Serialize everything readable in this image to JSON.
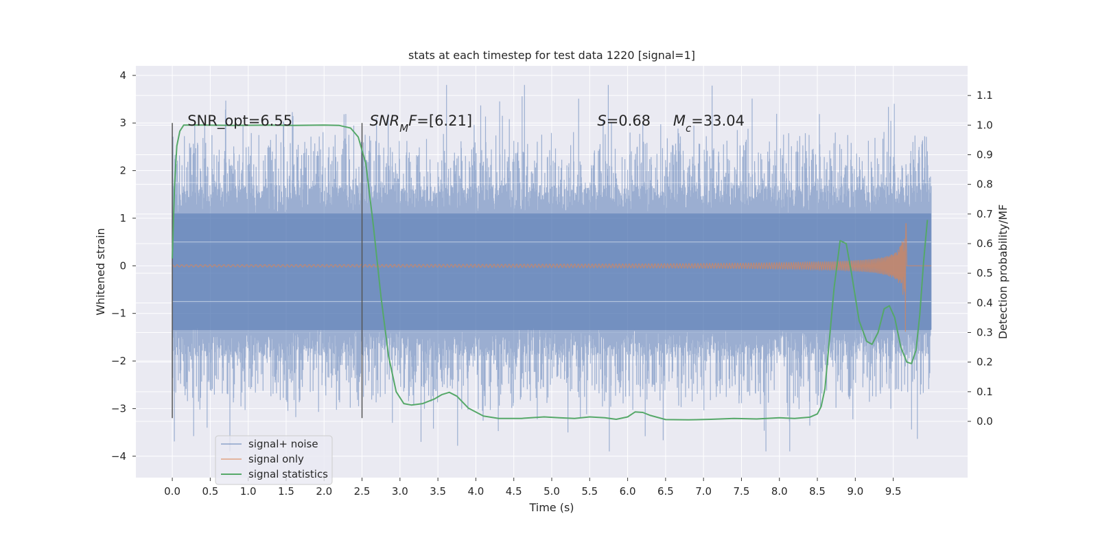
{
  "chart_data": {
    "type": "line",
    "title": "stats at each timestep for test data 1220 [signal=1]",
    "xlabel": "Time (s)",
    "ylabel_left": "Whitened strain",
    "ylabel_right": "Detection probability/MF",
    "xlim": [
      -0.48,
      10.48
    ],
    "ylim_left": [
      -4.45,
      4.2
    ],
    "ylim_right": [
      -0.19,
      1.2
    ],
    "x_ticks": [
      0.0,
      0.5,
      1.0,
      1.5,
      2.0,
      2.5,
      3.0,
      3.5,
      4.0,
      4.5,
      5.0,
      5.5,
      6.0,
      6.5,
      7.0,
      7.5,
      8.0,
      8.5,
      9.0,
      9.5
    ],
    "x_tick_labels": [
      "0.0",
      "0.5",
      "1.0",
      "1.5",
      "2.0",
      "2.5",
      "3.0",
      "3.5",
      "4.0",
      "4.5",
      "5.0",
      "5.5",
      "6.0",
      "6.5",
      "7.0",
      "7.5",
      "8.0",
      "8.5",
      "9.0",
      "9.5"
    ],
    "y_left_ticks": [
      4,
      3,
      2,
      1,
      0,
      -1,
      -2,
      -3,
      -4
    ],
    "y_left_tick_labels": [
      "4",
      "3",
      "2",
      "1",
      "0",
      "−1",
      "−2",
      "−3",
      "−4"
    ],
    "y_right_ticks": [
      1.1,
      1.0,
      0.9,
      0.8,
      0.7,
      0.6,
      0.5,
      0.4,
      0.3,
      0.2,
      0.1,
      0.0
    ],
    "y_right_tick_labels": [
      "1.1",
      "1.0",
      "0.9",
      "0.8",
      "0.7",
      "0.6",
      "0.5",
      "0.4",
      "0.3",
      "0.2",
      "0.1",
      "0.0"
    ],
    "vlines": [
      {
        "x": 0.0,
        "ymin": -3.2,
        "ymax": 3.0
      },
      {
        "x": 2.5,
        "ymin": -3.2,
        "ymax": 3.0
      }
    ],
    "annotations": [
      {
        "text_parts": [
          {
            "t": "SNR_opt=6.55",
            "italic": false
          }
        ],
        "x": 0.2,
        "y": 3.05
      },
      {
        "text_parts": [
          {
            "t": "SNR",
            "italic": true
          },
          {
            "t": "M",
            "italic": true,
            "sub": true
          },
          {
            "t": "F",
            "italic": true
          },
          {
            "t": "=[6.21]",
            "italic": false
          }
        ],
        "x": 2.6,
        "y": 3.05
      },
      {
        "text_parts": [
          {
            "t": "S",
            "italic": true
          },
          {
            "t": "=0.68",
            "italic": false
          }
        ],
        "x": 5.6,
        "y": 3.05
      },
      {
        "text_parts": [
          {
            "t": "M",
            "italic": true
          },
          {
            "t": "c",
            "italic": true,
            "sub": true
          },
          {
            "t": "=33.04",
            "italic": false
          }
        ],
        "x": 6.6,
        "y": 3.05
      }
    ],
    "series": [
      {
        "name": "signal+ noise",
        "axis": "left",
        "color": "#4c72b0",
        "style": "noisy",
        "x_range": [
          0.0,
          10.0
        ],
        "core_amplitude": 1.1,
        "spike_max": 3.8,
        "spike_min": -3.9
      },
      {
        "name": "signal only",
        "axis": "left",
        "color": "#dd8452",
        "style": "chirp",
        "t_merger": 9.67,
        "amplitude_peak": 1.55
      },
      {
        "name": "signal statistics",
        "axis": "right",
        "color": "#55a868",
        "x": [
          0.0,
          0.03,
          0.06,
          0.1,
          0.15,
          0.2,
          0.4,
          0.8,
          1.2,
          1.6,
          2.0,
          2.2,
          2.35,
          2.45,
          2.55,
          2.65,
          2.75,
          2.85,
          2.95,
          3.05,
          3.15,
          3.3,
          3.45,
          3.55,
          3.65,
          3.75,
          3.9,
          4.1,
          4.3,
          4.6,
          4.9,
          5.1,
          5.3,
          5.5,
          5.7,
          5.85,
          6.0,
          6.1,
          6.2,
          6.3,
          6.5,
          6.8,
          7.1,
          7.4,
          7.7,
          8.0,
          8.2,
          8.4,
          8.5,
          8.55,
          8.6,
          8.65,
          8.72,
          8.8,
          8.88,
          8.95,
          9.05,
          9.15,
          9.22,
          9.3,
          9.38,
          9.45,
          9.52,
          9.6,
          9.68,
          9.74,
          9.8,
          9.85,
          9.9,
          9.95
        ],
        "y": [
          0.55,
          0.8,
          0.93,
          0.98,
          1.0,
          1.0,
          1.0,
          0.999,
          1.0,
          0.999,
          1.0,
          0.999,
          0.99,
          0.96,
          0.87,
          0.66,
          0.42,
          0.22,
          0.1,
          0.06,
          0.055,
          0.06,
          0.075,
          0.09,
          0.098,
          0.085,
          0.045,
          0.018,
          0.01,
          0.01,
          0.015,
          0.012,
          0.01,
          0.015,
          0.012,
          0.007,
          0.015,
          0.032,
          0.03,
          0.02,
          0.006,
          0.005,
          0.007,
          0.01,
          0.008,
          0.012,
          0.01,
          0.014,
          0.025,
          0.05,
          0.11,
          0.25,
          0.45,
          0.61,
          0.6,
          0.5,
          0.34,
          0.27,
          0.26,
          0.3,
          0.38,
          0.39,
          0.35,
          0.25,
          0.2,
          0.195,
          0.24,
          0.36,
          0.54,
          0.68
        ]
      }
    ],
    "legend": {
      "location": "lower-left",
      "entries": [
        "signal+ noise",
        "signal only",
        "signal statistics"
      ]
    },
    "grid": true
  },
  "colors": {
    "plot_background": "#eaeaf2",
    "grid": "#ffffff",
    "noise_fill": "#4c72b0",
    "signal_only": "#dd8452",
    "statistics": "#55a868",
    "vline": "#555555"
  }
}
